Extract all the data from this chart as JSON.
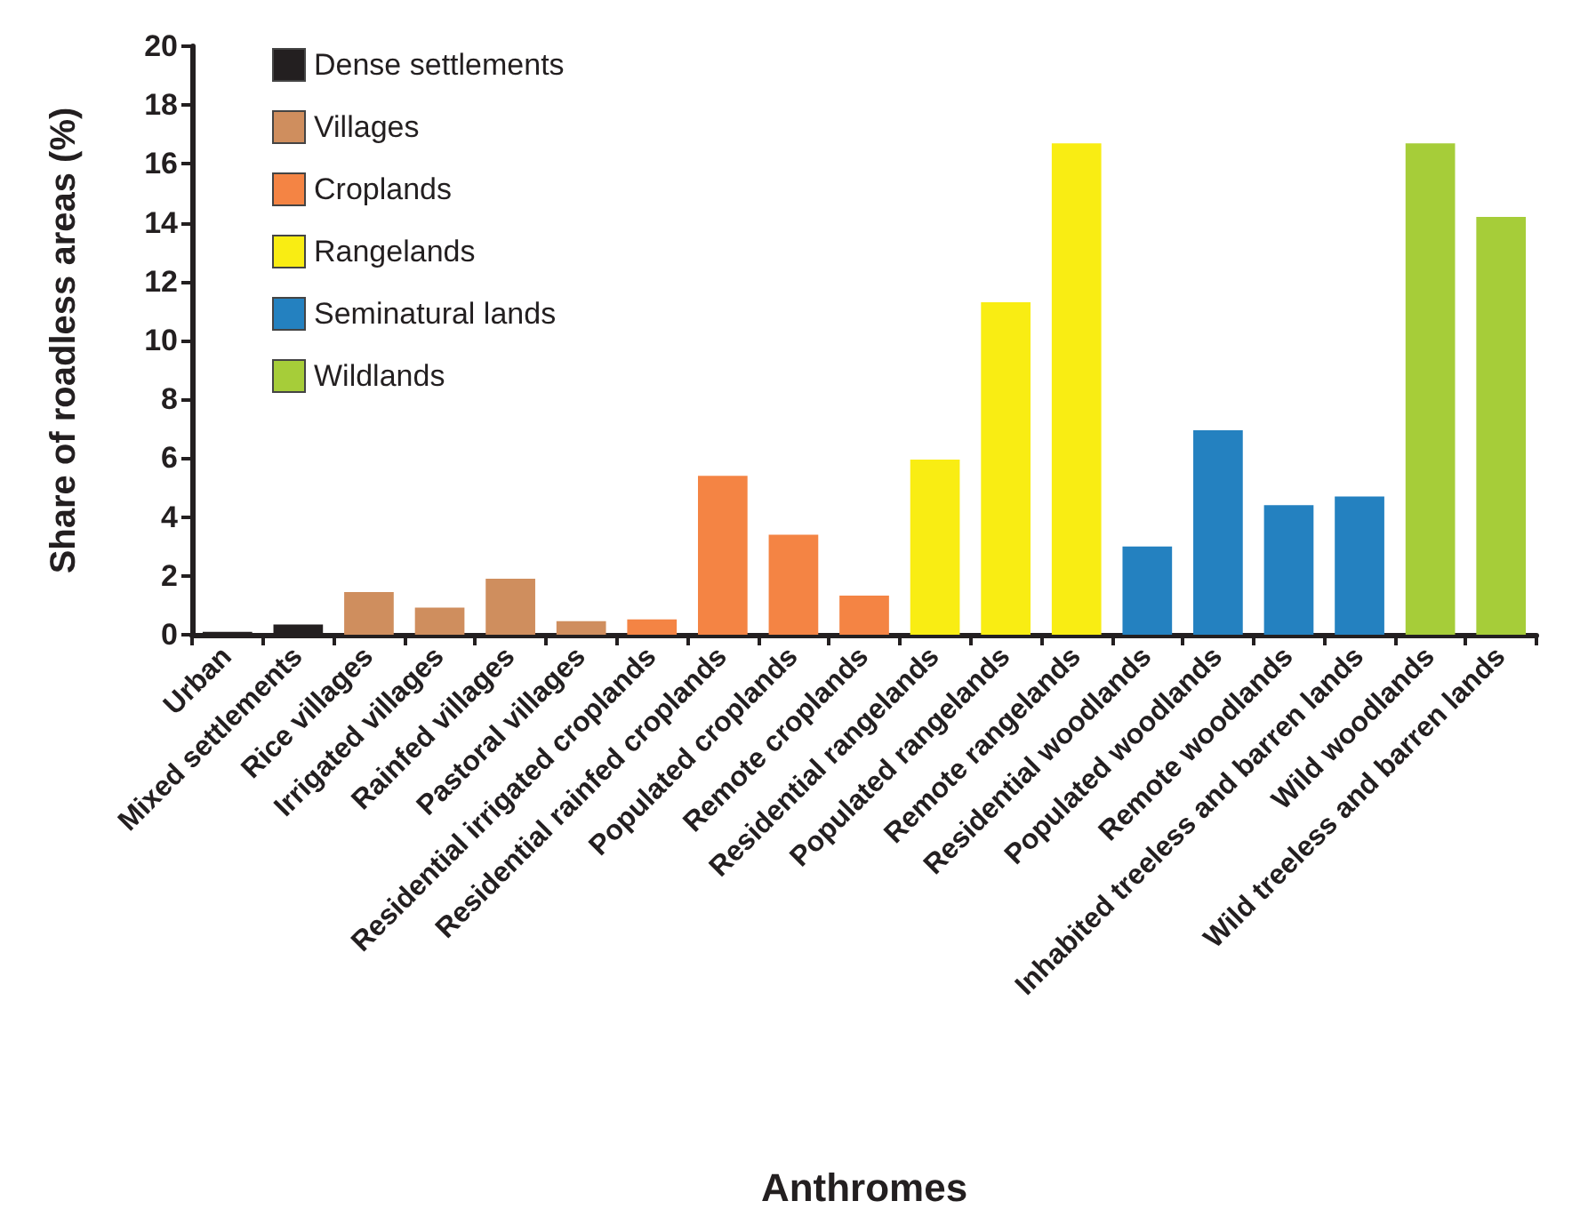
{
  "chart_data": {
    "type": "bar",
    "xlabel": "Anthromes",
    "ylabel": "Share of roadless areas (%)",
    "categories": [
      "Urban",
      "Mixed settlements",
      "Rice villages",
      "Irrigated villages",
      "Rainfed villages",
      "Pastoral villages",
      "Residential irrigated croplands",
      "Residential rainfed croplands",
      "Populated croplands",
      "Remote croplands",
      "Residential rangelands",
      "Populated rangelands",
      "Remote rangelands",
      "Residential woodlands",
      "Populated woodlands",
      "Remote woodlands",
      "Inhabited treeless and barren lands",
      "Wild woodlands",
      "Wild treeless and barren lands"
    ],
    "series": [
      {
        "name": "Dense settlements",
        "color": "#231f20",
        "values": [
          0.1,
          0.35,
          null,
          null,
          null,
          null,
          null,
          null,
          null,
          null,
          null,
          null,
          null,
          null,
          null,
          null,
          null,
          null,
          null
        ]
      },
      {
        "name": "Villages",
        "color": "#cf8e5e",
        "values": [
          null,
          null,
          1.45,
          0.92,
          1.9,
          0.46,
          null,
          null,
          null,
          null,
          null,
          null,
          null,
          null,
          null,
          null,
          null,
          null,
          null
        ]
      },
      {
        "name": "Croplands",
        "color": "#f48444",
        "values": [
          null,
          null,
          null,
          null,
          null,
          null,
          0.52,
          5.4,
          3.4,
          1.33,
          null,
          null,
          null,
          null,
          null,
          null,
          null,
          null,
          null
        ]
      },
      {
        "name": "Rangelands",
        "color": "#f9ed13",
        "values": [
          null,
          null,
          null,
          null,
          null,
          null,
          null,
          null,
          null,
          null,
          5.95,
          11.3,
          16.7,
          null,
          null,
          null,
          null,
          null,
          null
        ]
      },
      {
        "name": "Seminatural lands",
        "color": "#2481c0",
        "values": [
          null,
          null,
          null,
          null,
          null,
          null,
          null,
          null,
          null,
          null,
          null,
          null,
          null,
          3.0,
          6.95,
          4.4,
          4.7,
          null,
          null
        ]
      },
      {
        "name": "Wildlands",
        "color": "#a6cd39",
        "values": [
          null,
          null,
          null,
          null,
          null,
          null,
          null,
          null,
          null,
          null,
          null,
          null,
          null,
          null,
          null,
          null,
          null,
          16.7,
          14.2
        ]
      }
    ],
    "ylim": [
      0,
      20
    ],
    "yticks": [
      0,
      2,
      4,
      6,
      8,
      10,
      12,
      14,
      16,
      18,
      20
    ],
    "grid": false,
    "legend": "top left"
  }
}
